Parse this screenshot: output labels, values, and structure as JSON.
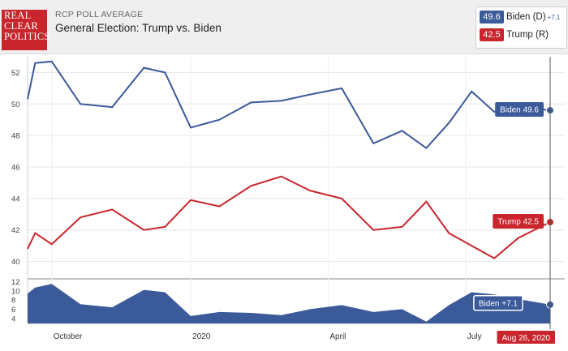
{
  "header": {
    "logo_lines": [
      "REAL",
      "CLEAR",
      "POLITICS"
    ],
    "subtitle": "RCP POLL AVERAGE",
    "title": "General Election: Trump vs. Biden"
  },
  "legend": {
    "biden": {
      "value": "49.6",
      "name": "Biden (D)",
      "spread": "+7.1",
      "color": "#3b5a9a"
    },
    "trump": {
      "value": "42.5",
      "name": "Trump (R)",
      "color": "#c8252c"
    }
  },
  "flags": {
    "biden": "Biden 49.6",
    "trump": "Trump 42.5",
    "spread": "Biden +7.1",
    "date": "Aug 26, 2020"
  },
  "chart_data": [
    {
      "type": "line",
      "title": "General Election: Trump vs. Biden",
      "xlabel": "",
      "ylabel": "",
      "ylim": [
        39,
        53
      ],
      "yticks": [
        40,
        42,
        44,
        46,
        48,
        50,
        52
      ],
      "x_ticks": [
        "October",
        "2020",
        "April",
        "July"
      ],
      "x": [
        "Sep 15, 2019",
        "Sep 20, 2019",
        "Oct 1, 2019",
        "Oct 20, 2019",
        "Nov 10, 2019",
        "Dec 1, 2019",
        "Dec 15, 2019",
        "Jan 1, 2020",
        "Jan 20, 2020",
        "Feb 10, 2020",
        "Mar 1, 2020",
        "Mar 20, 2020",
        "Apr 10, 2020",
        "May 1, 2020",
        "May 20, 2020",
        "Jun 5, 2020",
        "Jun 20, 2020",
        "Jul 5, 2020",
        "Jul 20, 2020",
        "Aug 5, 2020",
        "Aug 26, 2020"
      ],
      "grid": true,
      "series": [
        {
          "name": "Biden (D)",
          "color": "#3b5a9a",
          "values": [
            50.3,
            52.6,
            52.7,
            50.0,
            49.8,
            52.3,
            52.0,
            48.5,
            49.0,
            50.1,
            50.2,
            50.6,
            51.0,
            47.5,
            48.3,
            47.2,
            48.8,
            50.8,
            49.5,
            49.8,
            49.6
          ]
        },
        {
          "name": "Trump (R)",
          "color": "#c8252c",
          "values": [
            40.8,
            41.8,
            41.1,
            42.8,
            43.3,
            42.0,
            42.2,
            43.9,
            43.5,
            44.8,
            45.4,
            44.5,
            44.0,
            42.0,
            42.2,
            43.8,
            41.8,
            41.0,
            40.2,
            41.5,
            42.5
          ]
        }
      ]
    },
    {
      "type": "area",
      "title": "Spread",
      "ylim": [
        3,
        12
      ],
      "yticks": [
        4,
        6,
        8,
        10,
        12
      ],
      "x": [
        "Sep 15, 2019",
        "Sep 20, 2019",
        "Oct 1, 2019",
        "Oct 20, 2019",
        "Nov 10, 2019",
        "Dec 1, 2019",
        "Dec 15, 2019",
        "Jan 1, 2020",
        "Jan 20, 2020",
        "Feb 10, 2020",
        "Mar 1, 2020",
        "Mar 20, 2020",
        "Apr 10, 2020",
        "May 1, 2020",
        "May 20, 2020",
        "Jun 5, 2020",
        "Jun 20, 2020",
        "Jul 5, 2020",
        "Jul 20, 2020",
        "Aug 5, 2020",
        "Aug 26, 2020"
      ],
      "series": [
        {
          "name": "Biden spread",
          "color": "#3b5a9a",
          "values": [
            9.5,
            10.8,
            11.6,
            7.2,
            6.5,
            10.3,
            9.8,
            4.6,
            5.5,
            5.3,
            4.8,
            6.1,
            7.0,
            5.5,
            6.1,
            3.4,
            7.0,
            9.8,
            9.3,
            8.3,
            7.1
          ]
        }
      ]
    }
  ]
}
